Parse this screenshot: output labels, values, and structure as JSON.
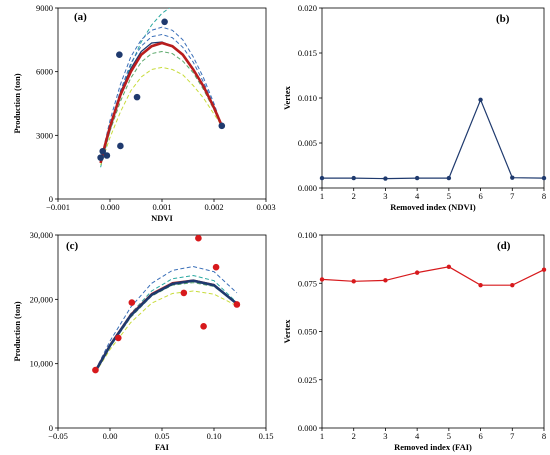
{
  "colors": {
    "navy": "#1f3a6e",
    "red": "#b81d1d",
    "marker_red": "#d7191c",
    "teal": "#2aa8a0",
    "blue_dash": "#3a6fb8",
    "green_dash": "#5aa86a",
    "lime_dash": "#9acd32",
    "yellow_dash": "#c8dc3c"
  },
  "chart_data": [
    {
      "panel": "(a)",
      "type": "scatter",
      "xlabel": "NDVI",
      "ylabel": "Production (ton)",
      "xlim": [
        -0.001,
        0.003
      ],
      "ylim": [
        0,
        9000
      ],
      "xticks": [
        "−0.001",
        "0.000",
        "0.001",
        "0.002",
        "0.003"
      ],
      "xtick_values": [
        -0.001,
        0,
        0.001,
        0.002,
        0.003
      ],
      "yticks": [
        "0",
        "3000",
        "6000",
        "9000"
      ],
      "ytick_values": [
        0,
        3000,
        6000,
        9000
      ],
      "points": [
        {
          "x": -0.00018,
          "y": 1950
        },
        {
          "x": -0.00014,
          "y": 2250
        },
        {
          "x": -6e-05,
          "y": 2050
        },
        {
          "x": 0.00018,
          "y": 6800
        },
        {
          "x": 0.0002,
          "y": 2500
        },
        {
          "x": 0.00052,
          "y": 4800
        },
        {
          "x": 0.00105,
          "y": 8350
        },
        {
          "x": 0.00215,
          "y": 3450
        }
      ],
      "fits": [
        {
          "name": "",
          "style": "solid-bold",
          "color": "red",
          "x": [
            -0.00018,
            -0.0001,
            0.0,
            0.0002,
            0.0004,
            0.0006,
            0.0008,
            0.001,
            0.0012,
            0.0014,
            0.0016,
            0.0018,
            0.002,
            0.00215
          ],
          "y": [
            1700,
            2500,
            3400,
            4900,
            6000,
            6800,
            7200,
            7350,
            7200,
            6800,
            6100,
            5300,
            4300,
            3450
          ]
        },
        {
          "name": "",
          "style": "solid",
          "color": "navy",
          "x": [
            -0.00018,
            0.0,
            0.0002,
            0.0004,
            0.0006,
            0.0008,
            0.001,
            0.0012,
            0.0014,
            0.0016,
            0.0018,
            0.002,
            0.00215
          ],
          "y": [
            1800,
            3450,
            5000,
            6150,
            6950,
            7350,
            7400,
            7200,
            6800,
            6100,
            5250,
            4300,
            3450
          ]
        },
        {
          "name": "",
          "style": "dashed",
          "color": "teal",
          "x": [
            -0.00018,
            0.0,
            0.0002,
            0.0004,
            0.0006,
            0.0008,
            0.001,
            0.0012,
            0.0013
          ],
          "y": [
            1500,
            3200,
            4900,
            6300,
            7400,
            8200,
            8750,
            9100,
            9300
          ]
        },
        {
          "name": "",
          "style": "dashed",
          "color": "blue_dash",
          "x": [
            -0.00018,
            0.0,
            0.0002,
            0.0004,
            0.0006,
            0.0008,
            0.001,
            0.0012,
            0.0014,
            0.0016,
            0.0018,
            0.002,
            0.00215
          ],
          "y": [
            1800,
            3700,
            5400,
            6700,
            7500,
            7950,
            8100,
            7950,
            7500,
            6700,
            5700,
            4500,
            3450
          ]
        },
        {
          "name": "",
          "style": "dashed",
          "color": "blue_dash",
          "x": [
            -0.00018,
            0.0,
            0.0002,
            0.0004,
            0.0006,
            0.0008,
            0.001,
            0.0012,
            0.0014,
            0.0016,
            0.0018,
            0.002,
            0.00215
          ],
          "y": [
            1800,
            3500,
            5100,
            6400,
            7200,
            7650,
            7750,
            7600,
            7150,
            6450,
            5500,
            4400,
            3450
          ]
        },
        {
          "name": "",
          "style": "dashed",
          "color": "green_dash",
          "x": [
            -0.00018,
            0.0,
            0.0002,
            0.0004,
            0.0006,
            0.0008,
            0.001,
            0.0012,
            0.0014,
            0.0016,
            0.0018,
            0.002,
            0.00215
          ],
          "y": [
            1700,
            3200,
            4600,
            5700,
            6450,
            6850,
            6950,
            6850,
            6500,
            5950,
            5150,
            4200,
            3450
          ]
        },
        {
          "name": "",
          "style": "dashed",
          "color": "yellow_dash",
          "x": [
            -0.00018,
            0.0,
            0.0002,
            0.0004,
            0.0006,
            0.0008,
            0.001,
            0.0012,
            0.0014,
            0.0016,
            0.0018,
            0.002,
            0.00215
          ],
          "y": [
            1600,
            2900,
            4100,
            5100,
            5750,
            6100,
            6200,
            6100,
            5850,
            5350,
            4750,
            4000,
            3450
          ]
        }
      ]
    },
    {
      "panel": "(b)",
      "type": "line",
      "xlabel": "Removed index (NDVI)",
      "ylabel": "Vertex",
      "xlim": [
        1,
        8
      ],
      "ylim": [
        0,
        0.02
      ],
      "xticks": [
        "1",
        "2",
        "3",
        "4",
        "5",
        "6",
        "7",
        "8"
      ],
      "xtick_values": [
        1,
        2,
        3,
        4,
        5,
        6,
        7,
        8
      ],
      "yticks": [
        "0.000",
        "0.005",
        "0.010",
        "0.015",
        "0.020"
      ],
      "ytick_values": [
        0,
        0.005,
        0.01,
        0.015,
        0.02
      ],
      "x": [
        1,
        2,
        3,
        4,
        5,
        6,
        7,
        8
      ],
      "y": [
        0.0011,
        0.0011,
        0.00105,
        0.0011,
        0.0011,
        0.0098,
        0.00115,
        0.0011
      ],
      "color": "navy"
    },
    {
      "panel": "(c)",
      "type": "scatter",
      "xlabel": "FAI",
      "ylabel": "Production (ton)",
      "xlim": [
        -0.05,
        0.15
      ],
      "ylim": [
        0,
        30000
      ],
      "xticks": [
        "−0.05",
        "0.00",
        "0.05",
        "0.10",
        "0.15"
      ],
      "xtick_values": [
        -0.05,
        0,
        0.05,
        0.1,
        0.15
      ],
      "yticks": [
        "0",
        "10,000",
        "20,000",
        "30,000"
      ],
      "ytick_values": [
        0,
        10000,
        20000,
        30000
      ],
      "points": [
        {
          "x": -0.014,
          "y": 9000
        },
        {
          "x": 0.008,
          "y": 14000
        },
        {
          "x": 0.021,
          "y": 19500
        },
        {
          "x": 0.071,
          "y": 21000
        },
        {
          "x": 0.085,
          "y": 29500
        },
        {
          "x": 0.09,
          "y": 15800
        },
        {
          "x": 0.102,
          "y": 25000
        },
        {
          "x": 0.122,
          "y": 19200
        }
      ],
      "fits": [
        {
          "name": "",
          "style": "solid-bold",
          "color": "navy",
          "x": [
            -0.014,
            0.0,
            0.02,
            0.04,
            0.06,
            0.08,
            0.1,
            0.122
          ],
          "y": [
            8800,
            12800,
            17500,
            20700,
            22400,
            22900,
            22200,
            19300
          ]
        },
        {
          "name": "",
          "style": "solid",
          "color": "red",
          "x": [
            -0.014,
            0.0,
            0.02,
            0.04,
            0.06,
            0.08,
            0.1,
            0.122
          ],
          "y": [
            9000,
            13000,
            17700,
            20900,
            22600,
            23000,
            22300,
            19300
          ]
        },
        {
          "name": "",
          "style": "dashed",
          "color": "blue_dash",
          "x": [
            -0.014,
            0.0,
            0.02,
            0.04,
            0.06,
            0.08,
            0.1,
            0.122
          ],
          "y": [
            9000,
            13500,
            18800,
            22500,
            24500,
            25100,
            24300,
            21000
          ]
        },
        {
          "name": "",
          "style": "dashed",
          "color": "teal",
          "x": [
            -0.014,
            0.0,
            0.02,
            0.04,
            0.06,
            0.08,
            0.1,
            0.122
          ],
          "y": [
            8800,
            12900,
            17800,
            21300,
            23200,
            23700,
            22900,
            19500
          ]
        },
        {
          "name": "",
          "style": "dashed",
          "color": "green_dash",
          "x": [
            -0.014,
            0.0,
            0.02,
            0.04,
            0.06,
            0.08,
            0.1,
            0.122
          ],
          "y": [
            8700,
            12600,
            17200,
            20500,
            22200,
            22600,
            22000,
            19300
          ]
        },
        {
          "name": "",
          "style": "dashed",
          "color": "yellow_dash",
          "x": [
            -0.014,
            0.0,
            0.02,
            0.04,
            0.06,
            0.08,
            0.1,
            0.122
          ],
          "y": [
            8600,
            12200,
            16400,
            19400,
            20900,
            21300,
            20800,
            19000
          ]
        }
      ]
    },
    {
      "panel": "(d)",
      "type": "line",
      "xlabel": "Removed index (FAI)",
      "ylabel": "Vertex",
      "xlim": [
        1,
        8
      ],
      "ylim": [
        0,
        0.1
      ],
      "xticks": [
        "1",
        "2",
        "3",
        "4",
        "5",
        "6",
        "7",
        "8"
      ],
      "xtick_values": [
        1,
        2,
        3,
        4,
        5,
        6,
        7,
        8
      ],
      "yticks": [
        "0.000",
        "0.025",
        "0.050",
        "0.075",
        "0.100"
      ],
      "ytick_values": [
        0,
        0.025,
        0.05,
        0.075,
        0.1
      ],
      "x": [
        1,
        2,
        3,
        4,
        5,
        6,
        7,
        8
      ],
      "y": [
        0.077,
        0.076,
        0.0765,
        0.0805,
        0.0835,
        0.074,
        0.074,
        0.082
      ],
      "color": "marker_red"
    }
  ]
}
